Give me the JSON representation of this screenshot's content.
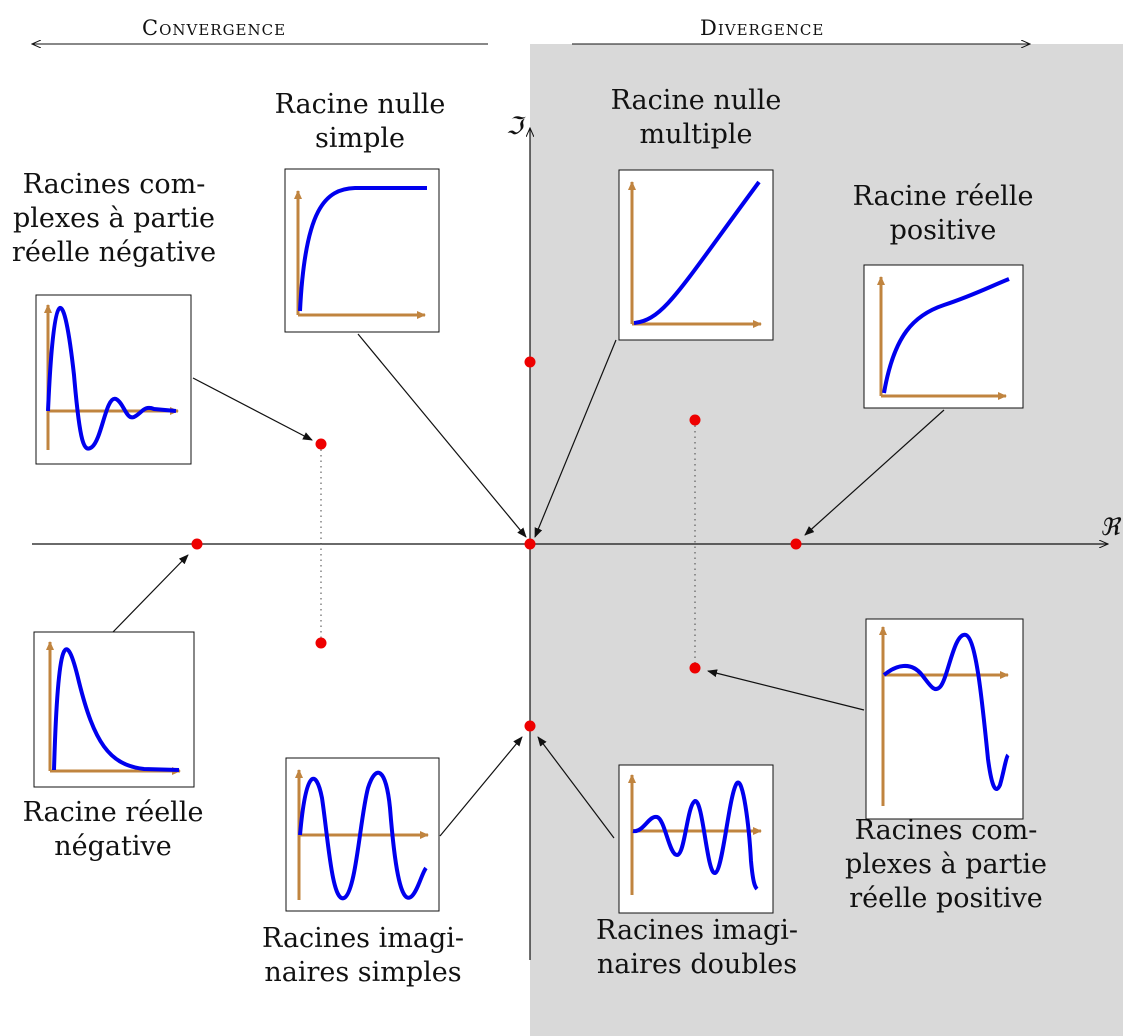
{
  "headers": {
    "convergence": "Convergence",
    "divergence": "Divergence"
  },
  "axes": {
    "real_symbol": "ℜ",
    "imag_symbol": "ℑ"
  },
  "labels": {
    "zero_simple": [
      "Racine nulle",
      "simple"
    ],
    "zero_multiple": [
      "Racine nulle",
      "multiple"
    ],
    "complex_negative": [
      "Racines com-",
      "plexes à partie",
      "réelle négative"
    ],
    "real_positive": [
      "Racine réelle",
      "positive"
    ],
    "real_negative": [
      "Racine réelle",
      "négative"
    ],
    "imag_simple": [
      "Racines imagi-",
      "naires simples"
    ],
    "imag_double": [
      "Racines imagi-",
      "naires doubles"
    ],
    "complex_positive": [
      "Racines com-",
      "plexes à partie",
      "réelle positive"
    ]
  },
  "colors": {
    "divergence_region": "#d9d9d9",
    "curve": "#0000ee",
    "axis_arrow": "#c0843f",
    "pole": "#ee0000",
    "line": "#111111"
  }
}
